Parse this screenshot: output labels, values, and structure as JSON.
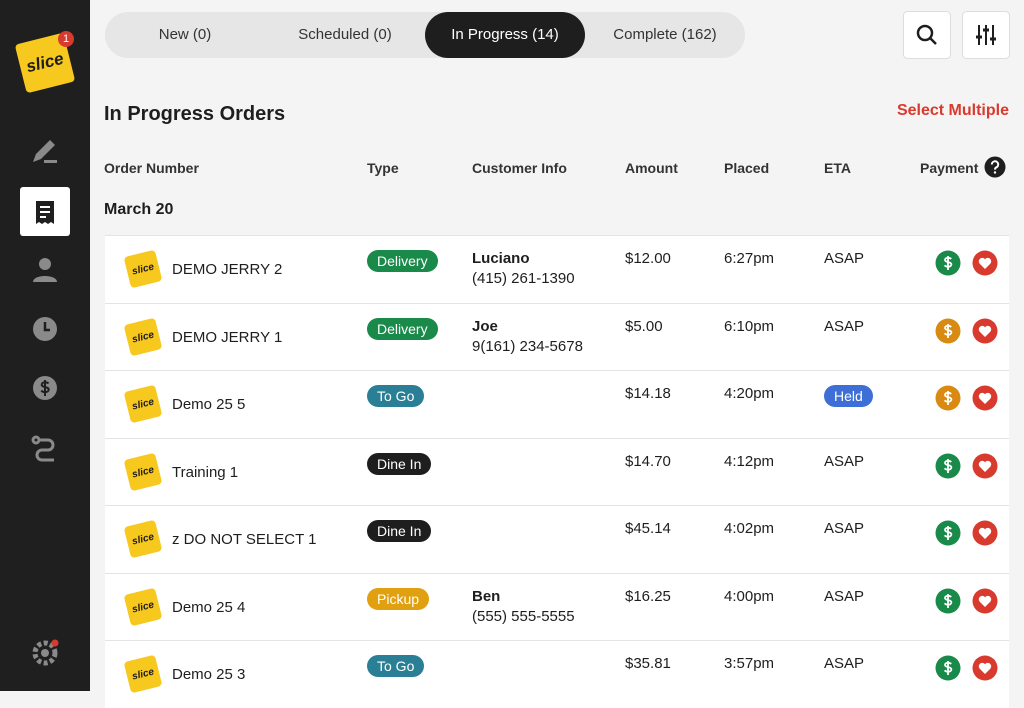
{
  "logo_text": "slice",
  "badge": "1",
  "tabs": [
    {
      "label": "New (0)",
      "active": false
    },
    {
      "label": "Scheduled (0)",
      "active": false
    },
    {
      "label": "In Progress (14)",
      "active": true
    },
    {
      "label": "Complete (162)",
      "active": false
    }
  ],
  "title": "In Progress Orders",
  "select_multiple": "Select Multiple",
  "columns": [
    "Order Number",
    "Type",
    "Customer Info",
    "Amount",
    "Placed",
    "ETA",
    "Payment"
  ],
  "date_group": "March 20",
  "orders": [
    {
      "name": "DEMO JERRY 2",
      "type": "Delivery",
      "type_color": "#1a8a4a",
      "customer": "Luciano",
      "phone": "(415) 261-1390",
      "amount": "$12.00",
      "placed": "6:27pm",
      "eta": "ASAP",
      "dollar_color": "#1a8a4a"
    },
    {
      "name": "DEMO JERRY 1",
      "type": "Delivery",
      "type_color": "#1a8a4a",
      "customer": "Joe",
      "phone": "9(161) 234-5678",
      "amount": "$5.00",
      "placed": "6:10pm",
      "eta": "ASAP",
      "dollar_color": "#d98a12"
    },
    {
      "name": "Demo 25 5",
      "type": "To Go",
      "type_color": "#2a7f96",
      "amount": "$14.18",
      "placed": "4:20pm",
      "eta": "Held",
      "eta_color": "#3d6fd6",
      "dollar_color": "#d98a12"
    },
    {
      "name": "Training 1",
      "type": "Dine In",
      "type_color": "#1e1e1e",
      "amount": "$14.70",
      "placed": "4:12pm",
      "eta": "ASAP",
      "dollar_color": "#1a8a4a"
    },
    {
      "name": "z DO NOT SELECT 1",
      "type": "Dine In",
      "type_color": "#1e1e1e",
      "amount": "$45.14",
      "placed": "4:02pm",
      "eta": "ASAP",
      "dollar_color": "#1a8a4a"
    },
    {
      "name": "Demo 25 4",
      "type": "Pickup",
      "type_color": "#e0a010",
      "customer": "Ben",
      "phone": "(555) 555-5555",
      "amount": "$16.25",
      "placed": "4:00pm",
      "eta": "ASAP",
      "dollar_color": "#1a8a4a"
    },
    {
      "name": "Demo 25 3",
      "type": "To Go",
      "type_color": "#2a7f96",
      "amount": "$35.81",
      "placed": "3:57pm",
      "eta": "ASAP",
      "dollar_color": "#1a8a4a"
    }
  ]
}
